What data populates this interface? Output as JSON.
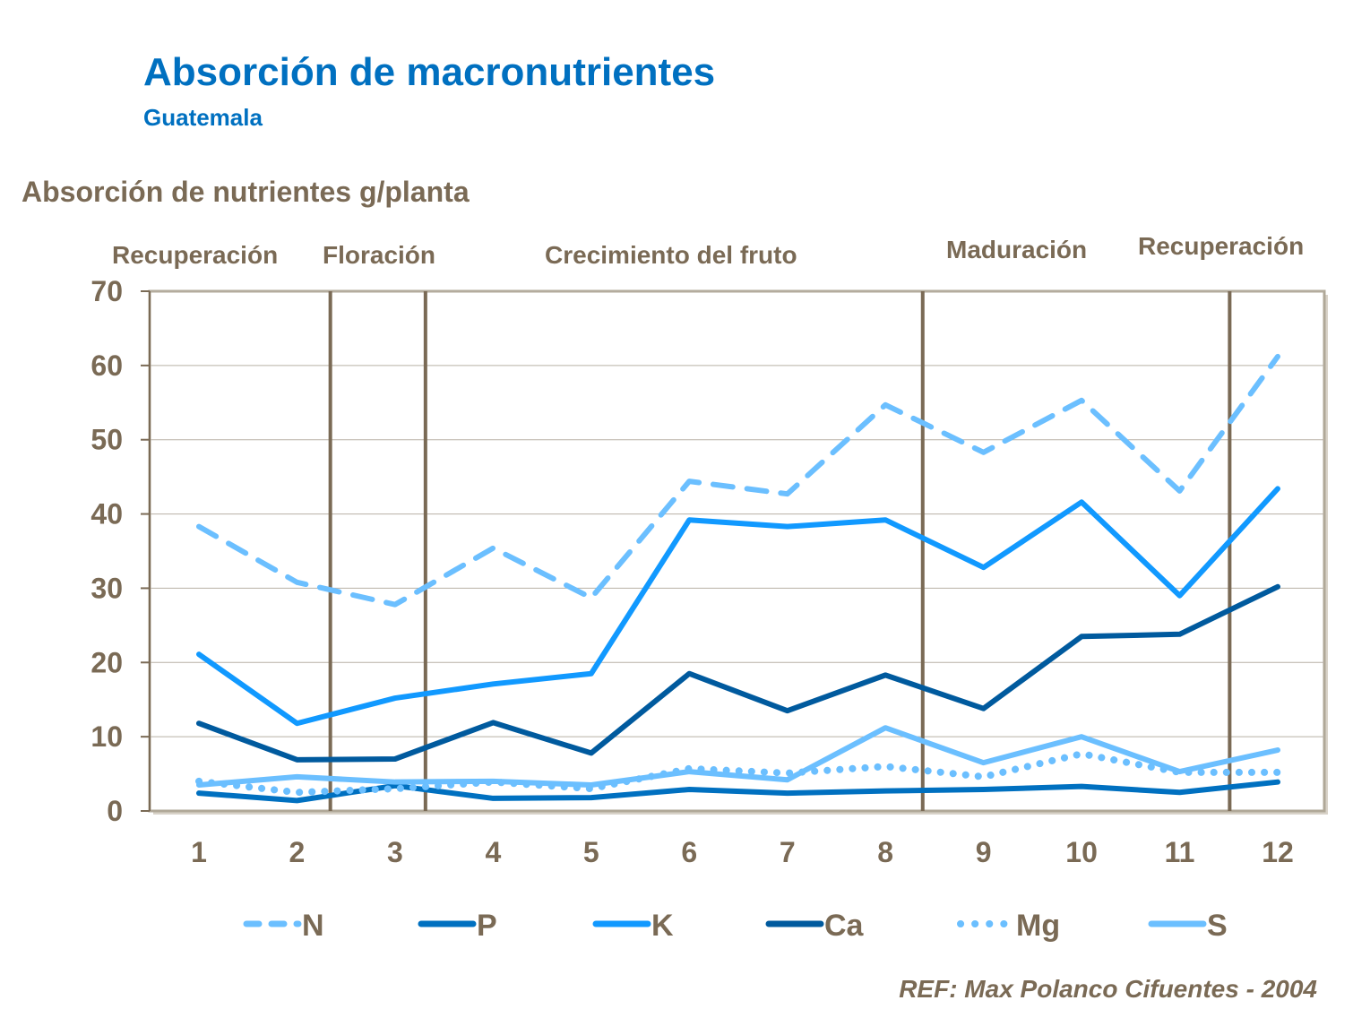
{
  "chart_data": {
    "type": "line",
    "title": "Absorción de macronutrientes",
    "subtitle": "Guatemala",
    "ylabel": "Absorción de nutrientes g/planta",
    "xlabel": "",
    "x": [
      1,
      2,
      3,
      4,
      5,
      6,
      7,
      8,
      9,
      10,
      11,
      12
    ],
    "ylim": [
      0,
      70
    ],
    "yticks": [
      0,
      10,
      20,
      30,
      40,
      50,
      60,
      70
    ],
    "grid": true,
    "legend": "bottom",
    "series": [
      {
        "name": "N",
        "color": "#6BBFFF",
        "style": "dashed",
        "values": [
          38.3,
          30.8,
          27.8,
          35.4,
          28.7,
          44.4,
          42.7,
          54.7,
          48.3,
          55.3,
          43.1,
          61.2
        ]
      },
      {
        "name": "P",
        "color": "#0070C0",
        "style": "solid",
        "values": [
          2.4,
          1.4,
          3.4,
          1.7,
          1.8,
          2.9,
          2.4,
          2.7,
          2.9,
          3.3,
          2.5,
          3.9
        ]
      },
      {
        "name": "K",
        "color": "#1199FF",
        "style": "solid",
        "values": [
          21.1,
          11.8,
          15.2,
          17.1,
          18.5,
          39.2,
          38.3,
          39.2,
          32.8,
          41.6,
          29.0,
          43.4
        ]
      },
      {
        "name": "Ca",
        "color": "#005A9E",
        "style": "solid",
        "values": [
          11.8,
          6.9,
          7.0,
          11.9,
          7.8,
          18.5,
          13.5,
          18.3,
          13.8,
          23.5,
          23.8,
          30.2
        ]
      },
      {
        "name": "Mg",
        "color": "#6BBFFF",
        "style": "dotted",
        "values": [
          4.0,
          2.5,
          3.0,
          3.9,
          3.0,
          5.7,
          5.1,
          6.0,
          4.6,
          7.7,
          5.2,
          5.2
        ]
      },
      {
        "name": "S",
        "color": "#6BBFFF",
        "style": "solid",
        "values": [
          3.5,
          4.6,
          3.9,
          4.0,
          3.5,
          5.3,
          4.2,
          11.2,
          6.5,
          10.0,
          5.3,
          8.2
        ]
      }
    ],
    "phase_dividers": [
      2.34,
      3.31,
      8.38,
      11.51
    ],
    "phases": [
      "Recuperación",
      "Floración",
      "Crecimiento  del fruto",
      "Maduración",
      "Recuperación"
    ]
  },
  "reference": "REF: Max Polanco  Cifuentes  -  2004"
}
